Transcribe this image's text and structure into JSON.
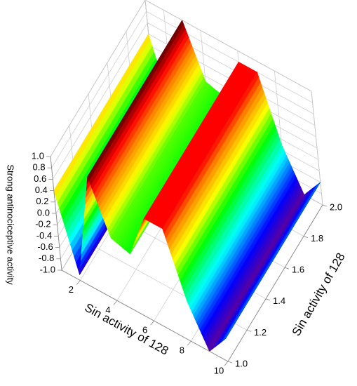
{
  "chart_data": {
    "type": "surface",
    "x_label": "Sin activity of 128",
    "y_label": "Sin activity of 128",
    "z_label": "Strong antinociceptive activity",
    "x": [
      1,
      2,
      3,
      4,
      5,
      6,
      7,
      8,
      9,
      10
    ],
    "z": [
      0.4,
      -0.9,
      1.0,
      0.1,
      0.0,
      0.8,
      0.8,
      -0.3,
      -1.0,
      -0.6
    ],
    "xlim": [
      1,
      10
    ],
    "xticks": [
      2,
      4,
      6,
      8,
      10
    ],
    "ylim": [
      1,
      2
    ],
    "yticks": [
      {
        "value": 1,
        "label": "1.0"
      },
      1.2,
      1.4,
      1.6,
      1.8,
      {
        "value": 2,
        "label": "2.0"
      }
    ],
    "zlim": [
      -1,
      1
    ],
    "zticks": [
      {
        "value": -1,
        "label": "-1.0"
      },
      -0.8,
      -0.6,
      -0.4,
      -0.2,
      {
        "value": 0,
        "label": "0.0"
      },
      0.2,
      0.4,
      0.6,
      0.8,
      {
        "value": 1,
        "label": "1.0"
      }
    ],
    "grid": true
  }
}
